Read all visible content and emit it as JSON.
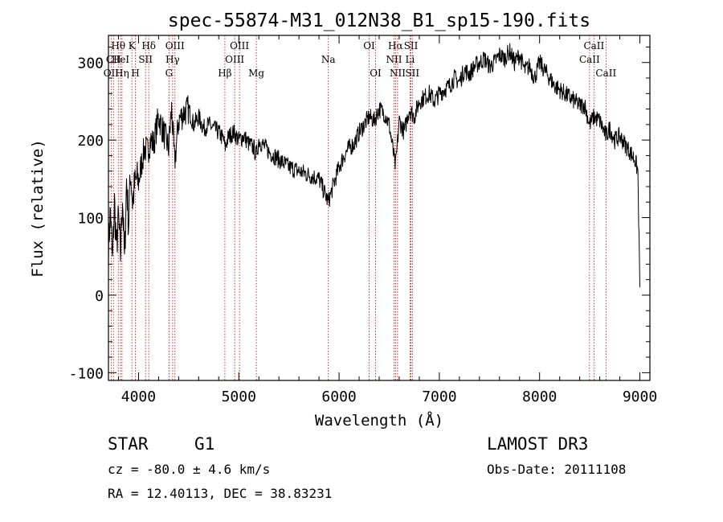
{
  "chart_data": {
    "type": "line",
    "title": "spec-55874-M31_012N38_B1_sp15-190.fits",
    "xlabel": "Wavelength (Å)",
    "ylabel": "Flux (relative)",
    "xlim": [
      3700,
      9100
    ],
    "ylim": [
      -110,
      335
    ],
    "xticks": [
      4000,
      5000,
      6000,
      7000,
      8000,
      9000
    ],
    "yticks": [
      -100,
      0,
      100,
      200,
      300
    ],
    "series": [
      {
        "name": "flux",
        "x": [
          3700,
          3720,
          3740,
          3760,
          3780,
          3800,
          3820,
          3840,
          3860,
          3880,
          3900,
          3920,
          3940,
          3960,
          3980,
          4000,
          4030,
          4060,
          4090,
          4120,
          4150,
          4200,
          4250,
          4300,
          4330,
          4360,
          4400,
          4450,
          4500,
          4550,
          4600,
          4650,
          4700,
          4750,
          4800,
          4850,
          4861,
          4900,
          4950,
          5000,
          5050,
          5100,
          5150,
          5175,
          5200,
          5300,
          5400,
          5500,
          5600,
          5700,
          5800,
          5893,
          5950,
          6000,
          6050,
          6100,
          6150,
          6200,
          6250,
          6300,
          6350,
          6400,
          6450,
          6500,
          6563,
          6600,
          6650,
          6700,
          6750,
          6800,
          6850,
          6900,
          6950,
          7000,
          7050,
          7100,
          7150,
          7200,
          7250,
          7300,
          7350,
          7400,
          7450,
          7500,
          7550,
          7600,
          7650,
          7700,
          7750,
          7800,
          7850,
          7900,
          7950,
          8000,
          8050,
          8100,
          8150,
          8200,
          8250,
          8300,
          8350,
          8400,
          8450,
          8498,
          8542,
          8600,
          8662,
          8700,
          8750,
          8800,
          8850,
          8900,
          8950,
          8980,
          9000
        ],
        "y": [
          60,
          110,
          40,
          120,
          60,
          100,
          50,
          130,
          40,
          150,
          90,
          160,
          120,
          140,
          150,
          145,
          170,
          190,
          185,
          200,
          195,
          230,
          210,
          190,
          240,
          170,
          225,
          235,
          240,
          220,
          230,
          215,
          220,
          215,
          210,
          200,
          190,
          205,
          210,
          200,
          205,
          195,
          190,
          180,
          200,
          185,
          175,
          165,
          160,
          155,
          150,
          120,
          145,
          165,
          180,
          190,
          195,
          210,
          220,
          230,
          225,
          240,
          235,
          220,
          165,
          225,
          210,
          240,
          230,
          250,
          255,
          260,
          250,
          260,
          265,
          270,
          280,
          275,
          290,
          285,
          295,
          300,
          305,
          295,
          300,
          310,
          305,
          315,
          300,
          310,
          290,
          295,
          280,
          300,
          290,
          280,
          270,
          265,
          260,
          255,
          250,
          245,
          245,
          220,
          230,
          225,
          205,
          215,
          200,
          205,
          195,
          185,
          175,
          160,
          10
        ]
      }
    ],
    "spectral_lines": [
      {
        "name": "Hθ",
        "x": 3798,
        "row": 1
      },
      {
        "name": "CII",
        "x": 3750,
        "row": 2
      },
      {
        "name": "OII",
        "x": 3727,
        "row": 3
      },
      {
        "name": "HeI",
        "x": 3820,
        "row": 2
      },
      {
        "name": "Hη",
        "x": 3835,
        "row": 3
      },
      {
        "name": "K",
        "x": 3934,
        "row": 1
      },
      {
        "name": "SII",
        "x": 4070,
        "row": 2
      },
      {
        "name": "H",
        "x": 3969,
        "row": 3
      },
      {
        "name": "Hδ",
        "x": 4102,
        "row": 1
      },
      {
        "name": "OIII",
        "x": 4363,
        "row": 1
      },
      {
        "name": "Hγ",
        "x": 4340,
        "row": 2
      },
      {
        "name": "G",
        "x": 4304,
        "row": 3
      },
      {
        "name": "Hβ",
        "x": 4861,
        "row": 3
      },
      {
        "name": "OIII",
        "x": 5007,
        "row": 1
      },
      {
        "name": "OIII",
        "x": 4959,
        "row": 2
      },
      {
        "name": "Mg",
        "x": 5175,
        "row": 3
      },
      {
        "name": "Na",
        "x": 5893,
        "row": 2
      },
      {
        "name": "OI",
        "x": 6300,
        "row": 1
      },
      {
        "name": "OI",
        "x": 6364,
        "row": 3
      },
      {
        "name": "Hα",
        "x": 6563,
        "row": 1
      },
      {
        "name": "NII",
        "x": 6548,
        "row": 2
      },
      {
        "name": "Li",
        "x": 6708,
        "row": 2
      },
      {
        "name": "NII",
        "x": 6584,
        "row": 3
      },
      {
        "name": "SII",
        "x": 6717,
        "row": 1
      },
      {
        "name": "SII",
        "x": 6731,
        "row": 3
      },
      {
        "name": "CaII",
        "x": 8542,
        "row": 1
      },
      {
        "name": "CaII",
        "x": 8498,
        "row": 2
      },
      {
        "name": "CaII",
        "x": 8662,
        "row": 3
      }
    ]
  },
  "info": {
    "class": "STAR",
    "subclass": "G1",
    "survey": "LAMOST DR3",
    "cz": "cz = -80.0 ± 4.6 km/s",
    "obs_date": "Obs-Date: 20111108",
    "radec": "RA =  12.40113, DEC =  38.83231"
  },
  "colors": {
    "line_marker": "#cc0000",
    "spectrum": "#000000"
  }
}
